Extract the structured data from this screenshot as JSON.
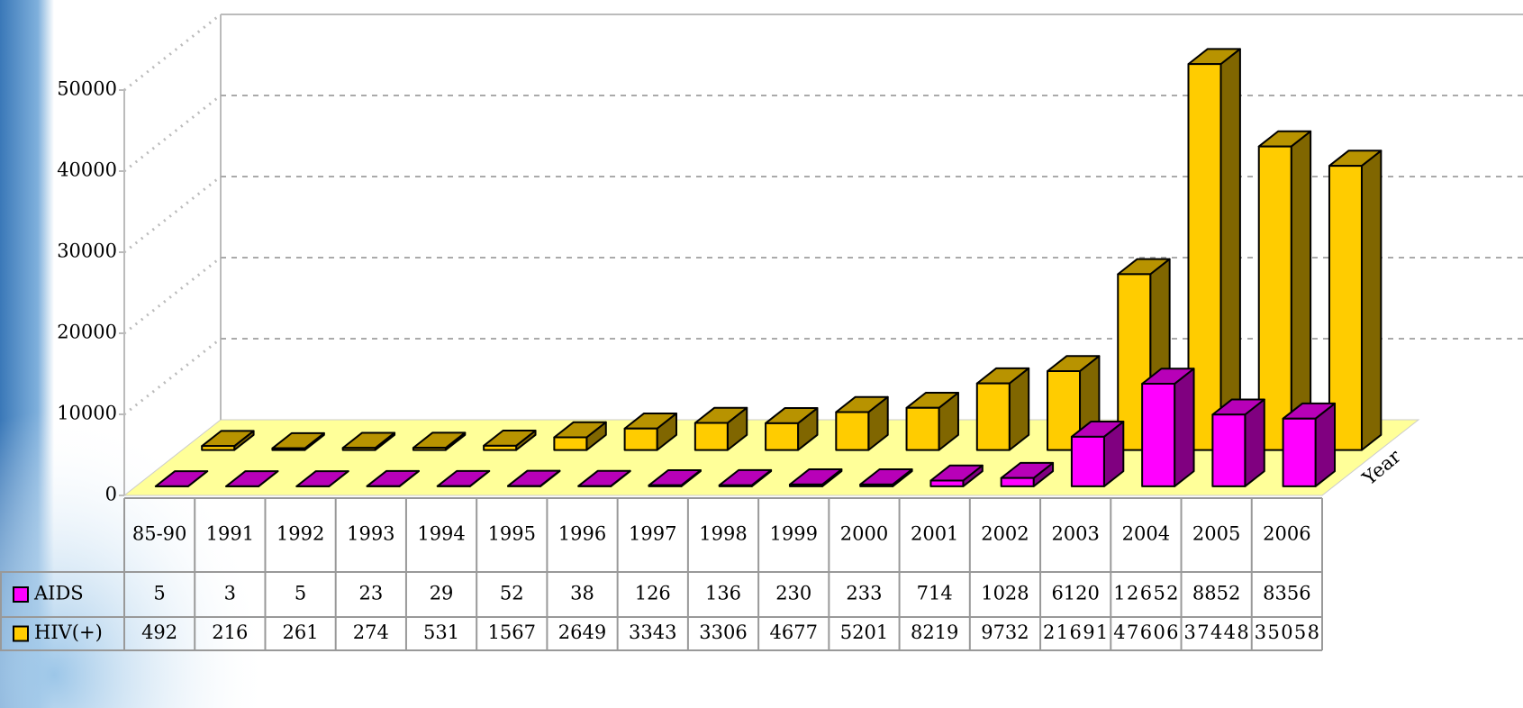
{
  "chart_data": {
    "type": "bar3d",
    "categories": [
      "85-90",
      "1991",
      "1992",
      "1993",
      "1994",
      "1995",
      "1996",
      "1997",
      "1998",
      "1999",
      "2000",
      "2001",
      "2002",
      "2003",
      "2004",
      "2005",
      "2006"
    ],
    "series": [
      {
        "name": "AIDS",
        "color": "#ff00ff",
        "values": [
          5,
          3,
          5,
          23,
          29,
          52,
          38,
          126,
          136,
          230,
          233,
          714,
          1028,
          6120,
          12652,
          8852,
          8356
        ]
      },
      {
        "name": "HIV(+)",
        "color": "#ffcc00",
        "values": [
          492,
          216,
          261,
          274,
          531,
          1567,
          2649,
          3343,
          3306,
          4677,
          5201,
          8219,
          9732,
          21691,
          47606,
          37448,
          35058
        ]
      }
    ],
    "x_label": "Year",
    "ylim": [
      0,
      50000
    ],
    "yticks": [
      0,
      10000,
      20000,
      30000,
      40000,
      50000
    ],
    "grid": true
  }
}
